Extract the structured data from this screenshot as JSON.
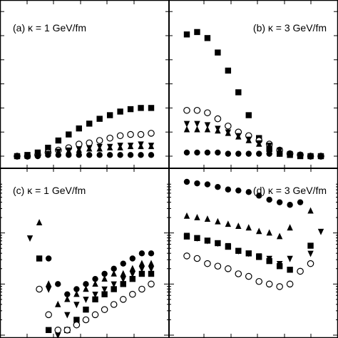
{
  "chart_data": [
    {
      "panel": "a",
      "label": "(a) κ = 1 GeV/fm",
      "type": "scatter",
      "scale": "linear",
      "x": [
        1,
        2,
        3,
        4,
        5,
        6,
        7,
        8,
        9,
        10,
        11,
        12,
        13,
        14
      ],
      "ylim": [
        0,
        1.0
      ],
      "series": [
        {
          "marker": "square-filled",
          "values": [
            0.0,
            0.01,
            0.03,
            0.07,
            0.13,
            0.18,
            0.23,
            0.27,
            0.31,
            0.34,
            0.37,
            0.39,
            0.4,
            0.4
          ]
        },
        {
          "marker": "circle-open",
          "values": [
            0.0,
            0.0,
            0.01,
            0.03,
            0.05,
            0.07,
            0.1,
            0.11,
            0.13,
            0.15,
            0.17,
            0.18,
            0.18,
            0.19
          ]
        },
        {
          "marker": "triangle-down",
          "values": [
            0.0,
            0.0,
            0.01,
            0.02,
            0.04,
            0.05,
            0.06,
            0.07,
            0.08,
            0.08,
            0.09,
            0.09,
            0.1,
            0.09
          ]
        },
        {
          "marker": "triangle-up",
          "values": [
            0.0,
            0.0,
            0.01,
            0.02,
            0.03,
            0.04,
            0.05,
            0.06,
            0.06,
            0.07,
            0.07,
            0.08,
            0.08,
            0.08
          ]
        },
        {
          "marker": "circle-filled",
          "values": [
            0.0,
            0.0,
            0.0,
            0.01,
            0.01,
            0.01,
            0.01,
            0.01,
            0.01,
            0.01,
            0.01,
            0.01,
            0.01,
            0.01
          ]
        }
      ]
    },
    {
      "panel": "b",
      "label": "(b) κ = 3 GeV/fm",
      "type": "scatter",
      "scale": "linear",
      "x": [
        1,
        2,
        3,
        4,
        5,
        6,
        7,
        8,
        9,
        10,
        11,
        12,
        13,
        14
      ],
      "ylim": [
        0,
        1.0
      ],
      "series": [
        {
          "marker": "square-filled",
          "values": [
            1.01,
            1.03,
            0.98,
            0.86,
            0.71,
            0.53,
            0.34,
            0.15,
            0.06,
            0.02,
            0.01,
            0.0,
            0.0,
            0.0
          ]
        },
        {
          "marker": "circle-open",
          "values": [
            0.38,
            0.38,
            0.36,
            0.31,
            0.25,
            0.2,
            0.17,
            0.13,
            0.1,
            0.05,
            0.02,
            0.01,
            0.0,
            0.0
          ]
        },
        {
          "marker": "triangle-down",
          "values": [
            0.27,
            0.27,
            0.26,
            0.23,
            0.2,
            0.17,
            0.14,
            0.11,
            0.09,
            0.05,
            0.02,
            0.01,
            0.0,
            0.0
          ]
        },
        {
          "marker": "triangle-up",
          "values": [
            0.22,
            0.22,
            0.22,
            0.21,
            0.19,
            0.16,
            0.13,
            0.1,
            0.08,
            0.05,
            0.02,
            0.01,
            0.0,
            0.0
          ]
        },
        {
          "marker": "circle-filled",
          "values": [
            0.03,
            0.03,
            0.03,
            0.03,
            0.02,
            0.02,
            0.02,
            0.02,
            0.02,
            0.02,
            0.01,
            0.01,
            0.0,
            0.0
          ]
        }
      ]
    },
    {
      "panel": "c",
      "label": "(c) κ = 1 GeV/fm",
      "type": "scatter",
      "scale": "log",
      "x": [
        1,
        2,
        3,
        4,
        5,
        6,
        7,
        8,
        9,
        10,
        11,
        12,
        13,
        14
      ],
      "ylim_log10": [
        -3,
        0
      ],
      "series": [
        {
          "marker": "triangle-down",
          "log10_values": [
            -1.1,
            null,
            -2.1,
            -3.0,
            -2.6,
            -2.4,
            -2.3,
            -2.2,
            -2.1,
            -2.0,
            -1.9,
            -1.8,
            -1.7,
            -1.7
          ]
        },
        {
          "marker": "triangle-up",
          "log10_values": [
            null,
            -0.8,
            -2.0,
            -2.4,
            -2.3,
            -2.2,
            -2.1,
            -2.0,
            -1.9,
            -1.8,
            -1.8,
            -1.7,
            -1.6,
            -1.6
          ]
        },
        {
          "marker": "square-filled",
          "log10_values": [
            null,
            -1.5,
            -2.9,
            -3.1,
            -2.9,
            -2.7,
            -2.5,
            -2.3,
            -2.2,
            -2.1,
            -2.0,
            -1.9,
            -1.8,
            -1.8
          ]
        },
        {
          "marker": "circle-filled",
          "log10_values": [
            null,
            null,
            -1.5,
            -2.0,
            -2.2,
            -2.1,
            -2.0,
            -1.9,
            -1.8,
            -1.7,
            -1.6,
            -1.5,
            -1.4,
            -1.4
          ]
        },
        {
          "marker": "circle-open",
          "log10_values": [
            null,
            -2.1,
            -2.6,
            -2.9,
            -2.9,
            -2.8,
            -2.7,
            -2.6,
            -2.5,
            -2.4,
            -2.3,
            -2.2,
            -2.1,
            -2.0
          ]
        }
      ]
    },
    {
      "panel": "d",
      "label": "(d) κ = 3 GeV/fm",
      "type": "scatter",
      "scale": "log",
      "x": [
        1,
        2,
        3,
        4,
        5,
        6,
        7,
        8,
        9,
        10,
        11,
        12,
        13,
        14
      ],
      "ylim_log10": [
        -3,
        0
      ],
      "series": [
        {
          "marker": "circle-filled",
          "log10_values": [
            0.0,
            -0.03,
            -0.05,
            -0.1,
            -0.15,
            -0.17,
            -0.2,
            -0.27,
            -0.35,
            -0.4,
            -0.45,
            -0.4,
            null,
            null
          ]
        },
        {
          "marker": "triangle-up",
          "log10_values": [
            -0.67,
            -0.7,
            -0.73,
            -0.78,
            -0.83,
            -0.87,
            -0.9,
            -0.97,
            -1.0,
            -1.07,
            -0.9,
            null,
            -0.57,
            null
          ]
        },
        {
          "marker": "square-filled",
          "log10_values": [
            -1.07,
            -1.1,
            -1.15,
            -1.2,
            -1.27,
            -1.35,
            -1.4,
            -1.47,
            -1.55,
            -1.65,
            -1.72,
            null,
            -1.25,
            null
          ]
        },
        {
          "marker": "triangle-down",
          "log10_values": [
            -1.05,
            -1.1,
            -1.15,
            -1.2,
            -1.25,
            -1.35,
            -1.4,
            -1.45,
            -1.5,
            -1.6,
            -1.5,
            null,
            -1.4,
            -0.97
          ]
        },
        {
          "marker": "circle-open",
          "log10_values": [
            -1.45,
            -1.5,
            -1.6,
            -1.65,
            -1.7,
            -1.8,
            -1.85,
            -1.95,
            -2.0,
            -2.05,
            -2.0,
            -1.75,
            -1.6,
            null
          ]
        }
      ]
    }
  ]
}
